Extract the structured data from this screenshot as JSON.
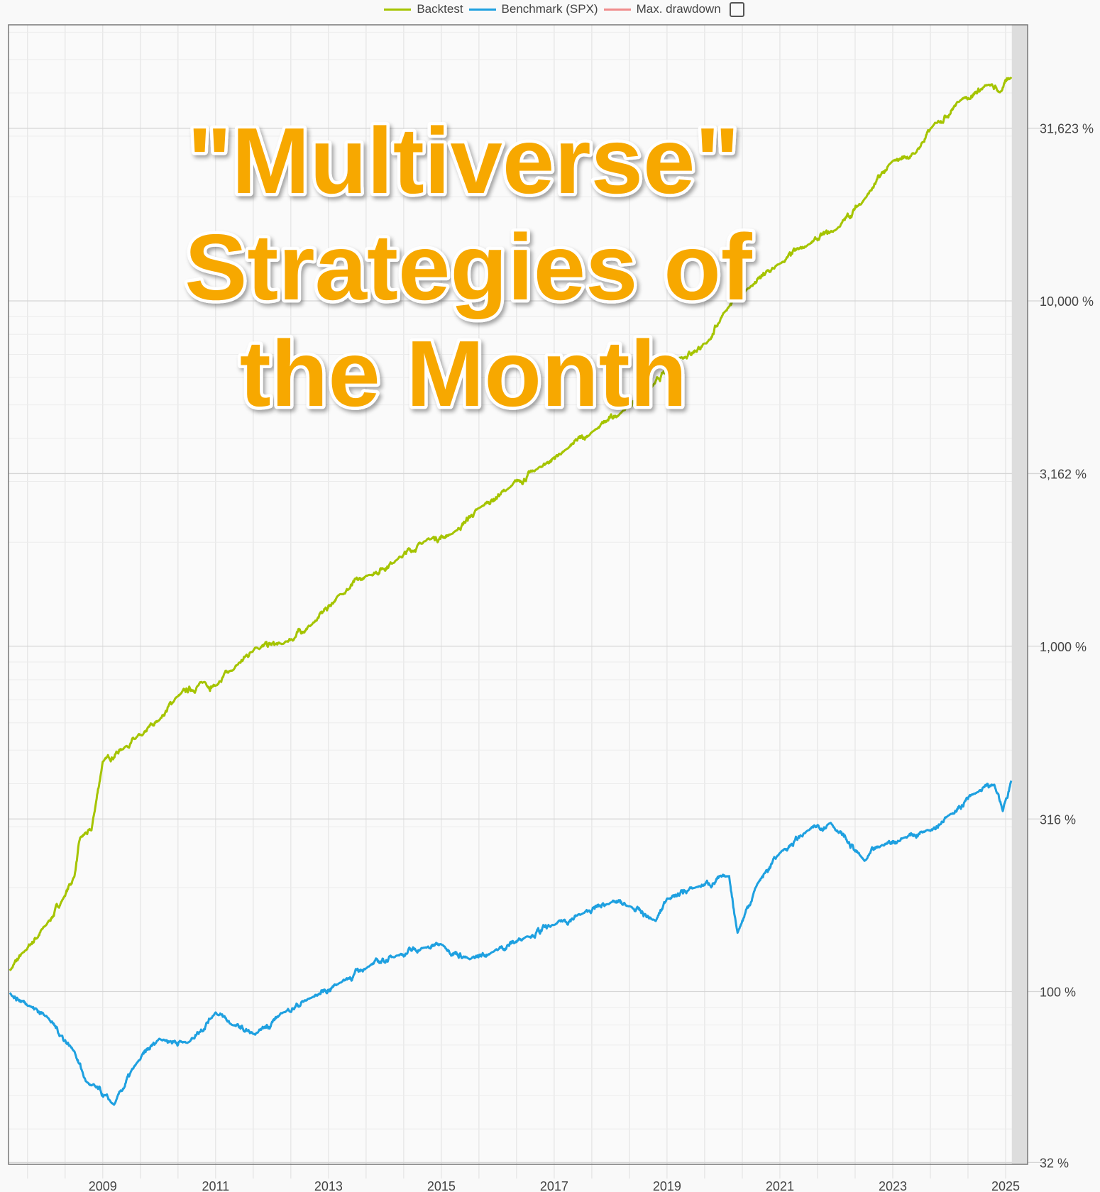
{
  "legend": {
    "items": [
      {
        "label": "Backtest",
        "color": "#a5c400"
      },
      {
        "label": "Benchmark (SPX)",
        "color": "#1ea0e0"
      },
      {
        "label": "Max. drawdown",
        "color": "#f08c8c"
      }
    ],
    "checkbox_checked": false
  },
  "overlay_title": {
    "lines": [
      "\"Multiverse\"",
      "Strategies of",
      "the Month"
    ],
    "color": "#f7a800"
  },
  "chart_data": {
    "type": "line",
    "title": "",
    "xlabel": "",
    "ylabel": "",
    "x_scale": "time (years)",
    "y_scale": "log",
    "xlim": [
      2007.33,
      2025.39
    ],
    "ylim": [
      31.6,
      63000
    ],
    "x_ticks": [
      "2009",
      "2011",
      "2013",
      "2015",
      "2017",
      "2019",
      "2021",
      "2023",
      "2025"
    ],
    "y_ticks": [
      {
        "value": 31623,
        "label": "31,623 %"
      },
      {
        "value": 10000,
        "label": "10,000 %"
      },
      {
        "value": 3162,
        "label": "3,162 %"
      },
      {
        "value": 1000,
        "label": "1,000 %"
      },
      {
        "value": 316,
        "label": "316 %"
      },
      {
        "value": 100,
        "label": "100 %"
      },
      {
        "value": 32,
        "label": "32 %"
      }
    ],
    "grid": true,
    "legend_position": "top-center",
    "shaded_region": {
      "from": 2025.11,
      "to": 2025.39,
      "color": "#dddddd"
    },
    "series": [
      {
        "name": "Backtest",
        "color": "#a5c400",
        "x": [
          2007.35,
          2007.6,
          2008.0,
          2008.3,
          2008.5,
          2008.6,
          2008.8,
          2009.0,
          2009.4,
          2009.7,
          2010.0,
          2010.3,
          2010.8,
          2011.0,
          2011.3,
          2011.7,
          2012.2,
          2012.7,
          2013.2,
          2013.7,
          2014.2,
          2014.7,
          2015.2,
          2015.7,
          2016.2,
          2016.7,
          2017.2,
          2017.7,
          2018.2,
          2018.7,
          2019.2,
          2019.7,
          2020.0,
          2020.4,
          2021.0,
          2021.5,
          2022.0,
          2022.5,
          2023.0,
          2023.4,
          2023.7,
          2024.2,
          2024.7,
          2024.9,
          2025.1
        ],
        "y": [
          115,
          130,
          156,
          186,
          216,
          279,
          293,
          463,
          512,
          552,
          611,
          711,
          788,
          768,
          851,
          990,
          1016,
          1153,
          1413,
          1603,
          1774,
          2014,
          2118,
          2529,
          2871,
          3260,
          3701,
          4202,
          4770,
          5550,
          6800,
          7530,
          9220,
          10740,
          12820,
          14550,
          16100,
          19720,
          25410,
          26730,
          31920,
          38100,
          42270,
          40180,
          44460
        ]
      },
      {
        "name": "Benchmark (SPX)",
        "color": "#1ea0e0",
        "x": [
          2007.35,
          2007.7,
          2008.0,
          2008.5,
          2008.7,
          2009.2,
          2009.6,
          2010.0,
          2010.5,
          2011.0,
          2011.3,
          2011.7,
          2012.2,
          2012.7,
          2013.2,
          2013.7,
          2014.2,
          2014.7,
          2015.0,
          2015.5,
          2015.9,
          2016.5,
          2017.0,
          2017.5,
          2018.0,
          2018.3,
          2018.8,
          2019.0,
          2019.5,
          2020.1,
          2020.25,
          2020.6,
          2021.0,
          2021.5,
          2021.9,
          2022.5,
          2022.8,
          2023.2,
          2023.6,
          2024.0,
          2024.5,
          2024.8,
          2024.95,
          2025.1
        ],
        "y": [
          99,
          91,
          85,
          67,
          55,
          47,
          62,
          73,
          71,
          87,
          80,
          75,
          87,
          96,
          106,
          118,
          127,
          134,
          137,
          124,
          130,
          144,
          156,
          168,
          181,
          177,
          160,
          186,
          200,
          216,
          148,
          205,
          252,
          293,
          308,
          239,
          265,
          279,
          293,
          324,
          378,
          397,
          333,
          408
        ]
      },
      {
        "name": "Max. drawdown",
        "color": "#f08c8c",
        "x": [],
        "y": []
      }
    ]
  }
}
